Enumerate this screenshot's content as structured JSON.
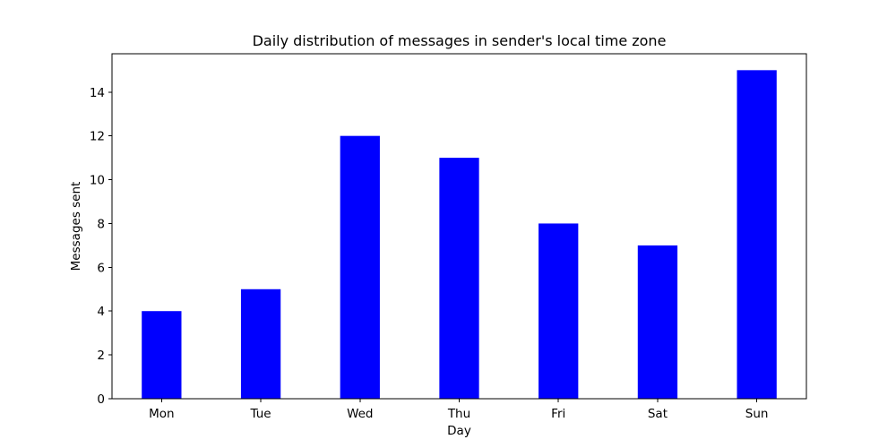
{
  "chart_data": {
    "type": "bar",
    "title": "Daily distribution of messages in sender's local time zone",
    "xlabel": "Day",
    "ylabel": "Messages sent",
    "categories": [
      "Mon",
      "Tue",
      "Wed",
      "Thu",
      "Fri",
      "Sat",
      "Sun"
    ],
    "values": [
      4,
      5,
      12,
      11,
      8,
      7,
      15
    ],
    "ylim": [
      0,
      15.75
    ],
    "yticks": [
      0,
      2,
      4,
      6,
      8,
      10,
      12,
      14
    ],
    "bar_color": "#0000ff",
    "grid": false,
    "legend": "none"
  }
}
